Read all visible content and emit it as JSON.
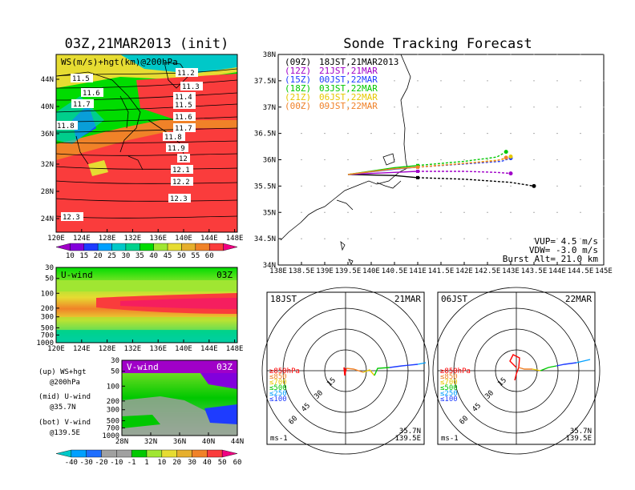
{
  "left_title": "03Z,21MAR2013 (init)",
  "right_title": "Sonde Tracking Forecast",
  "map_panel": {
    "label": "WS(m/s)+hgt(km)@200hPa",
    "lat_ticks": [
      "44N",
      "40N",
      "36N",
      "32N",
      "28N",
      "24N"
    ],
    "lon_ticks": [
      "120E",
      "124E",
      "128E",
      "132E",
      "136E",
      "140E",
      "144E",
      "148E"
    ],
    "contour_labels": [
      {
        "text": "11.5"
      },
      {
        "text": "11.6"
      },
      {
        "text": "11.7"
      },
      {
        "text": "11.8"
      },
      {
        "text": "11.2"
      },
      {
        "text": "11.3"
      },
      {
        "text": "11.4"
      },
      {
        "text": "11.5"
      },
      {
        "text": "11.6"
      },
      {
        "text": "11.7"
      },
      {
        "text": "11.8"
      },
      {
        "text": "11.9"
      },
      {
        "text": "12"
      },
      {
        "text": "12.1"
      },
      {
        "text": "12.2"
      },
      {
        "text": "12.3"
      },
      {
        "text": "12.3"
      }
    ]
  },
  "ws_colorbar": {
    "ticks": [
      "10",
      "15",
      "20",
      "25",
      "30",
      "35",
      "40",
      "45",
      "50",
      "55",
      "60"
    ],
    "colors": [
      "#a000c8",
      "#8200dc",
      "#1e3cff",
      "#00a0ff",
      "#00c8c8",
      "#00d28c",
      "#00dc00",
      "#a0e632",
      "#e6dc32",
      "#e6af2d",
      "#f08228",
      "#fa3c3c",
      "#f00082"
    ]
  },
  "u_panel": {
    "title": "U-wind",
    "time": "03Z",
    "p_ticks": [
      "30",
      "50",
      "100",
      "200",
      "300",
      "500",
      "700",
      "1000"
    ],
    "lon_ticks": [
      "120E",
      "124E",
      "128E",
      "132E",
      "136E",
      "140E",
      "144E",
      "148E"
    ]
  },
  "v_panel": {
    "title": "V-wind",
    "time": "03Z",
    "p_ticks": [
      "30",
      "50",
      "100",
      "200",
      "300",
      "500",
      "700",
      "1000"
    ],
    "lat_ticks": [
      "28N",
      "32N",
      "36N",
      "40N",
      "44N"
    ]
  },
  "notes": {
    "up": "(up) WS+hgt",
    "up2": "@200hPa",
    "mid": "(mid) U-wind",
    "mid2": "@35.7N",
    "bot": "(bot) V-wind",
    "bot2": "@139.5E"
  },
  "div_colorbar": {
    "ticks": [
      "-40",
      "-30",
      "-20",
      "-10",
      "-1",
      "1",
      "10",
      "20",
      "30",
      "40",
      "50",
      "60"
    ],
    "colors": [
      "#00c8c8",
      "#00a0ff",
      "#1e6eff",
      "#a0a0a0",
      "#a0a0a0",
      "#00c800",
      "#a0e632",
      "#e6dc32",
      "#e6af2d",
      "#f08228",
      "#fa3c3c",
      "#f00082"
    ]
  },
  "track_panel": {
    "lat_ticks": [
      "38N",
      "37.5N",
      "37N",
      "36.5N",
      "36N",
      "35.5N",
      "35N",
      "34.5N",
      "34N"
    ],
    "lon_ticks": [
      "138E",
      "138.5E",
      "139E",
      "139.5E",
      "140E",
      "140.5E",
      "141E",
      "141.5E",
      "142E",
      "142.5E",
      "143E",
      "143.5E",
      "144E",
      "144.5E",
      "145E"
    ],
    "legend": [
      {
        "utc": "(09Z)",
        "jst": "18JST,21MAR2013",
        "color": "#000000"
      },
      {
        "utc": "(12Z)",
        "jst": "21JST,21MAR",
        "color": "#a000c8"
      },
      {
        "utc": "(15Z)",
        "jst": "00JST,22MAR",
        "color": "#1e3cff"
      },
      {
        "utc": "(18Z)",
        "jst": "03JST,22MAR",
        "color": "#00c800"
      },
      {
        "utc": "(21Z)",
        "jst": "06JST,22MAR",
        "color": "#e6c800"
      },
      {
        "utc": "(00Z)",
        "jst": "09JST,22MAR",
        "color": "#f08228"
      }
    ],
    "vup": "VUP= 4.5 m/s",
    "vdw": "VDW= -3.0 m/s",
    "burst": "Burst Alt= 21.0 km"
  },
  "hodo_left": {
    "time": "18JST",
    "date": "21MAR",
    "ring_labels": [
      "15",
      "30",
      "45",
      "60"
    ],
    "levels": [
      "≥850hPa",
      "≤850",
      "≤700",
      "≤500",
      "≤250",
      "≤100"
    ],
    "level_colors": [
      "#ff0000",
      "#f08228",
      "#e6c800",
      "#00c800",
      "#00a0ff",
      "#1e3cff"
    ],
    "unit": "ms-1",
    "lat": "35.7N",
    "lon": "139.5E"
  },
  "hodo_right": {
    "time": "06JST",
    "date": "22MAR",
    "ring_labels": [
      "15",
      "30",
      "45",
      "60"
    ],
    "levels": [
      "≥850hPa",
      "≤850",
      "≤700",
      "≤500",
      "≤250",
      "≤100"
    ],
    "level_colors": [
      "#ff0000",
      "#f08228",
      "#e6c800",
      "#00c800",
      "#00a0ff",
      "#1e3cff"
    ],
    "unit": "ms-1",
    "lat": "35.7N",
    "lon": "139.5E"
  },
  "chart_data": {
    "type": "line",
    "x_unit": "degrees E",
    "y_unit": "degrees N",
    "xlim": [
      138,
      145
    ],
    "ylim": [
      34,
      38
    ],
    "series": [
      {
        "name": "(09Z)",
        "color": "#000000",
        "points": [
          [
            139.5,
            35.72
          ],
          [
            140.5,
            35.7
          ],
          [
            141.0,
            35.66
          ],
          [
            142.0,
            35.63
          ],
          [
            143.0,
            35.57
          ],
          [
            143.5,
            35.5
          ]
        ]
      },
      {
        "name": "(12Z)",
        "color": "#a000c8",
        "points": [
          [
            139.5,
            35.72
          ],
          [
            140.5,
            35.76
          ],
          [
            141.0,
            35.78
          ],
          [
            142.0,
            35.78
          ],
          [
            142.7,
            35.76
          ],
          [
            143.0,
            35.74
          ]
        ]
      },
      {
        "name": "(15Z)",
        "color": "#1e3cff",
        "points": [
          [
            139.5,
            35.72
          ],
          [
            140.5,
            35.82
          ],
          [
            141.0,
            35.86
          ],
          [
            142.0,
            35.92
          ],
          [
            142.8,
            35.97
          ],
          [
            143.0,
            36.03
          ]
        ]
      },
      {
        "name": "(18Z)",
        "color": "#00c800",
        "points": [
          [
            139.5,
            35.72
          ],
          [
            140.5,
            35.85
          ],
          [
            141.0,
            35.89
          ],
          [
            142.0,
            35.97
          ],
          [
            142.7,
            36.05
          ],
          [
            142.9,
            36.15
          ]
        ]
      },
      {
        "name": "(21Z)",
        "color": "#e6c800",
        "points": [
          [
            139.5,
            35.72
          ],
          [
            140.5,
            35.83
          ],
          [
            141.0,
            35.86
          ],
          [
            142.0,
            35.93
          ],
          [
            142.8,
            36.0
          ],
          [
            143.0,
            36.06
          ]
        ]
      },
      {
        "name": "(00Z)",
        "color": "#f08228",
        "points": [
          [
            139.5,
            35.72
          ],
          [
            140.5,
            35.83
          ],
          [
            141.0,
            35.86
          ],
          [
            142.0,
            35.93
          ],
          [
            142.7,
            35.98
          ],
          [
            142.9,
            36.04
          ]
        ]
      }
    ]
  }
}
